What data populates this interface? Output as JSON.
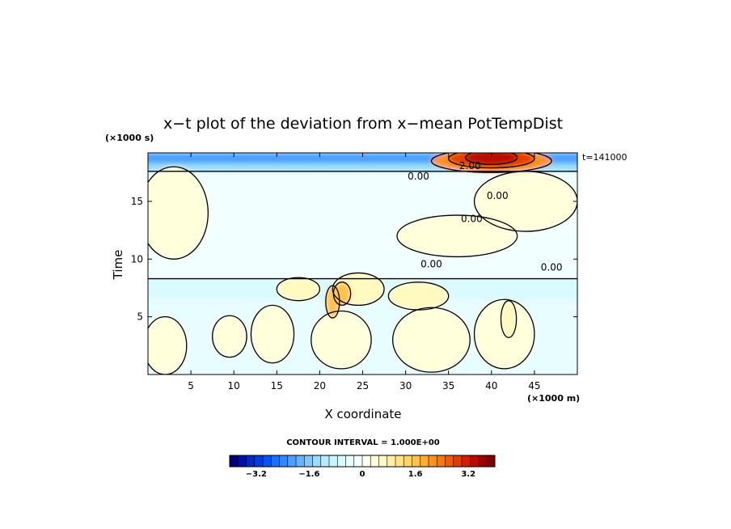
{
  "chart_data": {
    "type": "heatmap",
    "title": "x−t plot of the deviation from x−mean PotTempDist",
    "xlabel": "X coordinate",
    "ylabel": "Time",
    "x_unit": "(×1000 m)",
    "y_unit": "(×1000 s)",
    "time_stamp": "t=141000",
    "xlim": [
      0,
      50
    ],
    "ylim": [
      0,
      19.2
    ],
    "x_ticks": [
      5,
      10,
      15,
      20,
      25,
      30,
      35,
      40,
      45
    ],
    "y_ticks": [
      5,
      10,
      15
    ],
    "contour_interval_text": "CONTOUR INTERVAL = 1.000E+00",
    "contour_labels": [
      {
        "x": 31.5,
        "y": 16.9,
        "text": "0.00"
      },
      {
        "x": 40.7,
        "y": 15.2,
        "text": "0.00"
      },
      {
        "x": 37.7,
        "y": 13.2,
        "text": "0.00"
      },
      {
        "x": 33.0,
        "y": 9.3,
        "text": "0.00"
      },
      {
        "x": 47.0,
        "y": 9.0,
        "text": "0.00"
      },
      {
        "x": 37.5,
        "y": 17.8,
        "text": "2.00"
      }
    ],
    "regions": [
      {
        "kind": "band",
        "x0": 0,
        "x1": 50,
        "y0": 0,
        "y1": 8.3,
        "level": -0.3
      },
      {
        "kind": "band",
        "x0": 0,
        "x1": 50,
        "y0": 6.5,
        "y1": 8.3,
        "level": -0.7
      },
      {
        "kind": "band",
        "x0": 0,
        "x1": 50,
        "y0": 8.3,
        "y1": 17.6,
        "level": -0.2
      },
      {
        "kind": "band",
        "x0": 0,
        "x1": 50,
        "y0": 17.6,
        "y1": 19.2,
        "level": -1.4
      },
      {
        "kind": "band",
        "x0": 0,
        "x1": 50,
        "y0": 18.3,
        "y1": 19.2,
        "level": -2.2
      },
      {
        "kind": "blob",
        "cx": 3,
        "cy": 14.0,
        "rx": 4.0,
        "ry": 4.0,
        "level": 0.3
      },
      {
        "kind": "blob",
        "cx": 44,
        "cy": 15.0,
        "rx": 6.0,
        "ry": 2.6,
        "level": 0.3
      },
      {
        "kind": "blob",
        "cx": 36,
        "cy": 12.0,
        "rx": 7.0,
        "ry": 1.8,
        "level": 0.3
      },
      {
        "kind": "blob",
        "cx": 2,
        "cy": 2.5,
        "rx": 2.5,
        "ry": 2.5,
        "level": 0.3
      },
      {
        "kind": "blob",
        "cx": 14.5,
        "cy": 3.5,
        "rx": 2.5,
        "ry": 2.5,
        "level": 0.3
      },
      {
        "kind": "blob",
        "cx": 9.5,
        "cy": 3.3,
        "rx": 2.0,
        "ry": 1.8,
        "level": 0.3
      },
      {
        "kind": "blob",
        "cx": 22.5,
        "cy": 3.0,
        "rx": 3.5,
        "ry": 2.5,
        "level": 0.3
      },
      {
        "kind": "blob",
        "cx": 33,
        "cy": 3.0,
        "rx": 4.5,
        "ry": 2.8,
        "level": 0.3
      },
      {
        "kind": "blob",
        "cx": 41.5,
        "cy": 3.5,
        "rx": 3.5,
        "ry": 3.0,
        "level": 0.3
      },
      {
        "kind": "blob",
        "cx": 17.5,
        "cy": 7.4,
        "rx": 2.5,
        "ry": 1.0,
        "level": 0.5
      },
      {
        "kind": "blob",
        "cx": 24.5,
        "cy": 7.4,
        "rx": 3.0,
        "ry": 1.4,
        "level": 0.5
      },
      {
        "kind": "blob",
        "cx": 31.5,
        "cy": 6.8,
        "rx": 3.5,
        "ry": 1.2,
        "level": 0.7
      },
      {
        "kind": "blob",
        "cx": 42,
        "cy": 4.8,
        "rx": 0.9,
        "ry": 1.6,
        "level": 0.7
      },
      {
        "kind": "blob",
        "cx": 21.5,
        "cy": 6.3,
        "rx": 0.8,
        "ry": 1.4,
        "level": 1.6
      },
      {
        "kind": "blob",
        "cx": 22.6,
        "cy": 7.0,
        "rx": 1.0,
        "ry": 1.0,
        "level": 1.7
      },
      {
        "kind": "blob",
        "cx": 40,
        "cy": 18.5,
        "rx": 7.0,
        "ry": 1.0,
        "level": 2.0
      },
      {
        "kind": "blob",
        "cx": 40,
        "cy": 18.7,
        "rx": 5.0,
        "ry": 0.8,
        "level": 2.8
      },
      {
        "kind": "blob",
        "cx": 40,
        "cy": 18.8,
        "rx": 3.0,
        "ry": 0.6,
        "level": 3.4
      }
    ]
  },
  "colorbar": {
    "min": -4.0,
    "max": 4.0,
    "colors": [
      "#00007f",
      "#0010ad",
      "#0028cc",
      "#003ce0",
      "#0055f0",
      "#1a70f8",
      "#3388ff",
      "#4ca0ff",
      "#66b4ff",
      "#80c8ff",
      "#99dcff",
      "#b3ebff",
      "#c8f5ff",
      "#dafaff",
      "#e8fdff",
      "#f2ffff",
      "#fffff0",
      "#ffffdc",
      "#fffac0",
      "#fff0a0",
      "#ffe480",
      "#ffd466",
      "#ffc24d",
      "#ffac33",
      "#ff921a",
      "#ff7800",
      "#f55a00",
      "#e63c00",
      "#d22000",
      "#b80a00",
      "#9a0000",
      "#7f0000"
    ],
    "tick_values": [
      -3.2,
      -1.6,
      0,
      1.6,
      3.2
    ],
    "tick_labels": [
      "−3.2",
      "−1.6",
      "0",
      "1.6",
      "3.2"
    ]
  }
}
